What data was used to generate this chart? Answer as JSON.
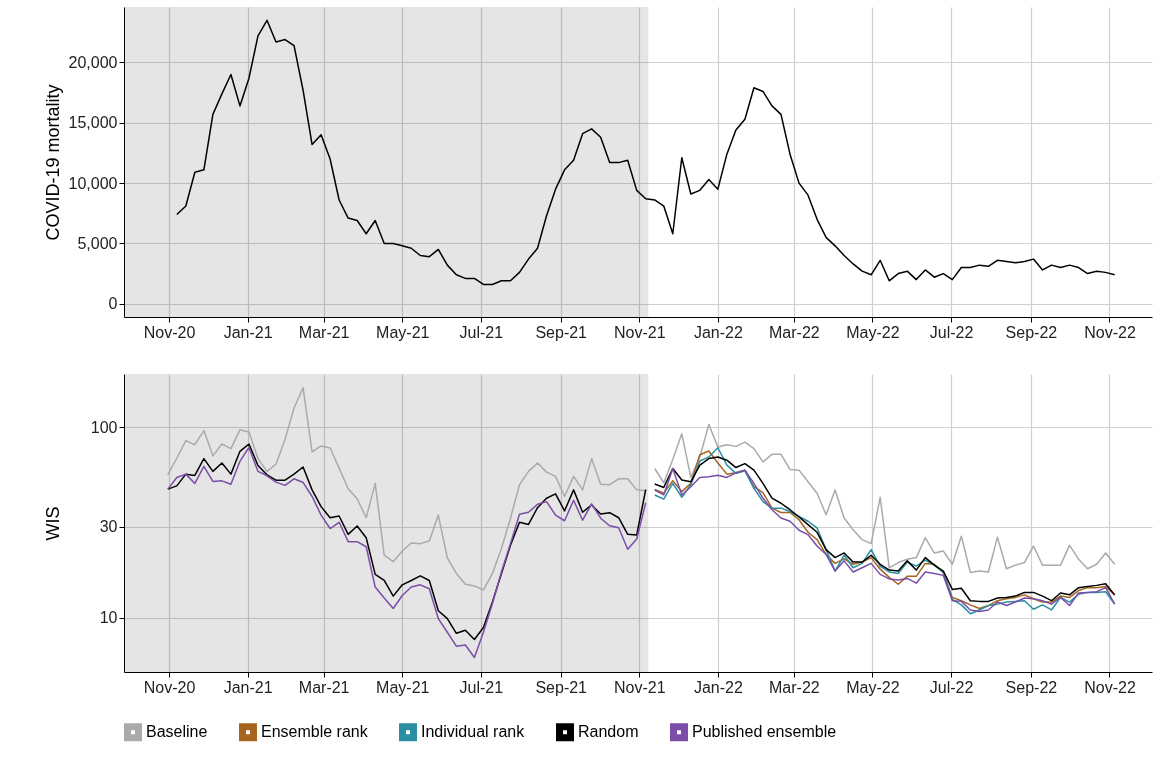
{
  "chart_data": [
    {
      "type": "line",
      "ylabel": "COVID-19 mortality",
      "color": "#000000",
      "x": [
        "2020-11-07",
        "2020-11-14",
        "2020-11-21",
        "2020-11-28",
        "2020-12-05",
        "2020-12-12",
        "2020-12-19",
        "2020-12-26",
        "2021-01-02",
        "2021-01-09",
        "2021-01-16",
        "2021-01-23",
        "2021-01-30",
        "2021-02-06",
        "2021-02-13",
        "2021-02-20",
        "2021-02-27",
        "2021-03-06",
        "2021-03-13",
        "2021-03-20",
        "2021-03-27",
        "2021-04-03",
        "2021-04-10",
        "2021-04-17",
        "2021-04-24",
        "2021-05-01",
        "2021-05-08",
        "2021-05-15",
        "2021-05-22",
        "2021-05-29",
        "2021-06-05",
        "2021-06-12",
        "2021-06-19",
        "2021-06-26",
        "2021-07-03",
        "2021-07-10",
        "2021-07-17",
        "2021-07-24",
        "2021-07-31",
        "2021-08-07",
        "2021-08-14",
        "2021-08-21",
        "2021-08-28",
        "2021-09-04",
        "2021-09-11",
        "2021-09-18",
        "2021-09-25",
        "2021-10-02",
        "2021-10-09",
        "2021-10-16",
        "2021-10-23",
        "2021-10-30",
        "2021-11-06",
        "2021-11-13",
        "2021-11-20",
        "2021-11-27",
        "2021-12-04",
        "2021-12-11",
        "2021-12-18",
        "2021-12-25",
        "2022-01-01",
        "2022-01-08",
        "2022-01-15",
        "2022-01-22",
        "2022-01-29",
        "2022-02-05",
        "2022-02-12",
        "2022-02-19",
        "2022-02-26",
        "2022-03-05",
        "2022-03-12",
        "2022-03-19",
        "2022-03-26",
        "2022-04-02",
        "2022-04-09",
        "2022-04-16",
        "2022-04-23",
        "2022-04-30",
        "2022-05-07",
        "2022-05-14",
        "2022-05-21",
        "2022-05-28",
        "2022-06-04",
        "2022-06-11",
        "2022-06-18",
        "2022-06-25",
        "2022-07-02",
        "2022-07-09",
        "2022-07-16",
        "2022-07-23",
        "2022-07-30",
        "2022-08-06",
        "2022-08-13",
        "2022-08-20",
        "2022-08-27",
        "2022-09-03",
        "2022-09-10",
        "2022-09-17",
        "2022-09-24",
        "2022-10-01",
        "2022-10-08",
        "2022-10-15",
        "2022-10-22",
        "2022-10-29",
        "2022-11-05"
      ],
      "values": [
        7400,
        8100,
        10900,
        11100,
        15700,
        17400,
        19000,
        16400,
        18700,
        22200,
        23500,
        21700,
        21900,
        21400,
        17700,
        13200,
        14000,
        12000,
        8600,
        7100,
        6900,
        5800,
        6900,
        5000,
        5000,
        4800,
        4600,
        4000,
        3900,
        4500,
        3200,
        2400,
        2100,
        2100,
        1600,
        1600,
        1900,
        1900,
        2600,
        3700,
        4600,
        7300,
        9500,
        11100,
        11900,
        14100,
        14500,
        13800,
        11700,
        11700,
        11900,
        9400,
        8700,
        8600,
        8100,
        5800,
        12100,
        9100,
        9400,
        10300,
        9500,
        12400,
        14400,
        15300,
        17900,
        17600,
        16400,
        15700,
        12400,
        10000,
        9000,
        7000,
        5500,
        4800,
        4000,
        3300,
        2700,
        2400,
        3600,
        1900,
        2500,
        2700,
        2000,
        2800,
        2200,
        2500,
        2000,
        3000,
        3000,
        3200,
        3100,
        3600,
        3500,
        3400,
        3500,
        3700,
        2800,
        3200,
        3000,
        3200,
        3000,
        2500,
        2700,
        2600,
        2400
      ],
      "xlim": [
        "2020-09-27",
        "2022-12-04"
      ],
      "ylim": [
        -1100,
        24600
      ],
      "xticks": [
        {
          "value": "2020-11-01",
          "label": "Nov-20"
        },
        {
          "value": "2021-01-01",
          "label": "Jan-21"
        },
        {
          "value": "2021-03-01",
          "label": "Mar-21"
        },
        {
          "value": "2021-05-01",
          "label": "May-21"
        },
        {
          "value": "2021-07-01",
          "label": "Jul-21"
        },
        {
          "value": "2021-09-01",
          "label": "Sep-21"
        },
        {
          "value": "2021-11-01",
          "label": "Nov-21"
        },
        {
          "value": "2022-01-01",
          "label": "Jan-22"
        },
        {
          "value": "2022-03-01",
          "label": "Mar-22"
        },
        {
          "value": "2022-05-01",
          "label": "May-22"
        },
        {
          "value": "2022-07-01",
          "label": "Jul-22"
        },
        {
          "value": "2022-09-01",
          "label": "Sep-22"
        },
        {
          "value": "2022-11-01",
          "label": "Nov-22"
        }
      ],
      "yticks": [
        0,
        {
          "value": 5000,
          "label": "5,000"
        },
        {
          "value": 10000,
          "label": "10,000"
        },
        {
          "value": 15000,
          "label": "15,000"
        },
        {
          "value": 20000,
          "label": "20,000"
        }
      ],
      "grid": true,
      "bands": [
        {
          "axis": "x",
          "from": "2020-09-27",
          "to": "2021-11-08",
          "color": "#e5e5e5"
        }
      ]
    },
    {
      "type": "line",
      "ylabel": "WIS",
      "log": true,
      "legend": "bottom",
      "x": [
        "2020-10-31",
        "2020-11-07",
        "2020-11-14",
        "2020-11-21",
        "2020-11-28",
        "2020-12-05",
        "2020-12-12",
        "2020-12-19",
        "2020-12-26",
        "2021-01-02",
        "2021-01-09",
        "2021-01-16",
        "2021-01-23",
        "2021-01-30",
        "2021-02-06",
        "2021-02-13",
        "2021-02-20",
        "2021-02-27",
        "2021-03-06",
        "2021-03-13",
        "2021-03-20",
        "2021-03-27",
        "2021-04-03",
        "2021-04-10",
        "2021-04-17",
        "2021-04-24",
        "2021-05-01",
        "2021-05-08",
        "2021-05-15",
        "2021-05-22",
        "2021-05-29",
        "2021-06-05",
        "2021-06-12",
        "2021-06-19",
        "2021-06-26",
        "2021-07-03",
        "2021-07-10",
        "2021-07-17",
        "2021-07-24",
        "2021-07-31",
        "2021-08-07",
        "2021-08-14",
        "2021-08-21",
        "2021-08-28",
        "2021-09-04",
        "2021-09-11",
        "2021-09-18",
        "2021-09-25",
        "2021-10-02",
        "2021-10-09",
        "2021-10-16",
        "2021-10-23",
        "2021-10-30",
        "2021-11-06",
        "2021-11-09",
        "2021-11-13",
        "2021-11-20",
        "2021-11-27",
        "2021-12-04",
        "2021-12-11",
        "2021-12-18",
        "2021-12-25",
        "2022-01-01",
        "2022-01-08",
        "2022-01-15",
        "2022-01-22",
        "2022-01-29",
        "2022-02-05",
        "2022-02-12",
        "2022-02-19",
        "2022-02-26",
        "2022-03-05",
        "2022-03-12",
        "2022-03-19",
        "2022-03-26",
        "2022-04-02",
        "2022-04-09",
        "2022-04-16",
        "2022-04-23",
        "2022-04-30",
        "2022-05-07",
        "2022-05-14",
        "2022-05-21",
        "2022-05-28",
        "2022-06-04",
        "2022-06-11",
        "2022-06-18",
        "2022-06-25",
        "2022-07-02",
        "2022-07-09",
        "2022-07-16",
        "2022-07-23",
        "2022-07-30",
        "2022-08-06",
        "2022-08-13",
        "2022-08-20",
        "2022-08-27",
        "2022-09-03",
        "2022-09-10",
        "2022-09-17",
        "2022-09-24",
        "2022-10-01",
        "2022-10-08",
        "2022-10-15",
        "2022-10-22",
        "2022-10-29",
        "2022-11-05"
      ],
      "series": [
        {
          "name": "Baseline",
          "color": "#aaaaaa",
          "values": [
            56.2,
            68.9,
            85,
            80.9,
            95.9,
            70.7,
            81.6,
            77.1,
            96.8,
            94.4,
            68.4,
            58.6,
            64.1,
            86.1,
            126,
            161,
            74.1,
            79.7,
            77.8,
            61,
            47.5,
            42.1,
            33.5,
            50.7,
            21.3,
            19.7,
            22.4,
            24.7,
            24.5,
            25.3,
            34.6,
            20.6,
            17.1,
            15,
            14.7,
            14,
            17.1,
            23.1,
            33.3,
            49.9,
            58.6,
            64.9,
            58.1,
            55.2,
            43.3,
            55.2,
            46.9,
            68.4,
            50.2,
            49.9,
            53.6,
            53.6,
            46.9,
            46.4,
            null,
            60.7,
            51.1,
            67.6,
            92.3,
            54.5,
            69.8,
            103.2,
            78.6,
            80.9,
            79.3,
            83.5,
            77.1,
            65.7,
            72,
            72,
            60,
            59.5,
            51.7,
            45,
            34.7,
            46.8,
            33.4,
            29,
            25.7,
            24.5,
            42.9,
            18.3,
            19.5,
            20.3,
            20.7,
            26.3,
            21.9,
            22.4,
            19.1,
            26.8,
            17.3,
            17.6,
            17.4,
            26.5,
            18.1,
            18.9,
            19.5,
            23.8,
            18.9,
            18.9,
            18.9,
            24,
            20.3,
            18.1,
            19.1,
            21.9,
            19.1
          ]
        },
        {
          "name": "Ensemble rank",
          "color": "#a6651f",
          "x": [
            "2021-11-13",
            "2021-11-20",
            "2021-11-27",
            "2021-12-04",
            "2021-12-11",
            "2021-12-18",
            "2021-12-25",
            "2022-01-01",
            "2022-01-08",
            "2022-01-15",
            "2022-01-22",
            "2022-01-29",
            "2022-02-05",
            "2022-02-12",
            "2022-02-19",
            "2022-02-26",
            "2022-03-05",
            "2022-03-12",
            "2022-03-19",
            "2022-03-26",
            "2022-04-02",
            "2022-04-09",
            "2022-04-16",
            "2022-04-23",
            "2022-04-30",
            "2022-05-07",
            "2022-05-14",
            "2022-05-21",
            "2022-05-28",
            "2022-06-04",
            "2022-06-11",
            "2022-06-18",
            "2022-06-25",
            "2022-07-02",
            "2022-07-09",
            "2022-07-16",
            "2022-07-23",
            "2022-07-30",
            "2022-08-06",
            "2022-08-13",
            "2022-08-20",
            "2022-08-27",
            "2022-09-03",
            "2022-09-10",
            "2022-09-17",
            "2022-09-24",
            "2022-10-01",
            "2022-10-08",
            "2022-10-15",
            "2022-10-22",
            "2022-10-29",
            "2022-11-05"
          ],
          "values": [
            47.2,
            45,
            52.4,
            45.9,
            50.7,
            71.7,
            75,
            64.9,
            56.7,
            57.6,
            59.5,
            48.7,
            45.4,
            37.6,
            35.7,
            35.7,
            32.7,
            28.1,
            25.7,
            21.5,
            19.3,
            20.4,
            19.1,
            19.6,
            20.7,
            18,
            16.3,
            15,
            16.5,
            16.5,
            19.3,
            19.1,
            17.3,
            12.8,
            12.3,
            11.7,
            11.2,
            11.6,
            12.3,
            12.6,
            12.8,
            13.2,
            12.6,
            12.1,
            12.1,
            13,
            12.8,
            13.9,
            14.4,
            14.4,
            14.6,
            13.2
          ]
        },
        {
          "name": "Individual rank",
          "color": "#2a8fa3",
          "x": [
            "2021-11-13",
            "2021-11-20",
            "2021-11-27",
            "2021-12-04",
            "2021-12-11",
            "2021-12-18",
            "2021-12-25",
            "2022-01-01",
            "2022-01-08",
            "2022-01-15",
            "2022-01-22",
            "2022-01-29",
            "2022-02-05",
            "2022-02-12",
            "2022-02-19",
            "2022-02-26",
            "2022-03-05",
            "2022-03-12",
            "2022-03-19",
            "2022-03-26",
            "2022-04-02",
            "2022-04-09",
            "2022-04-16",
            "2022-04-23",
            "2022-04-30",
            "2022-05-07",
            "2022-05-14",
            "2022-05-21",
            "2022-05-28",
            "2022-06-04",
            "2022-06-11",
            "2022-06-18",
            "2022-06-25",
            "2022-07-02",
            "2022-07-09",
            "2022-07-16",
            "2022-07-23",
            "2022-07-30",
            "2022-08-06",
            "2022-08-13",
            "2022-08-20",
            "2022-08-27",
            "2022-09-03",
            "2022-09-10",
            "2022-09-17",
            "2022-09-24",
            "2022-10-01",
            "2022-10-08",
            "2022-10-15",
            "2022-10-22",
            "2022-10-29",
            "2022-11-05"
          ],
          "values": [
            44.1,
            41.9,
            50.7,
            42.9,
            49.7,
            66.5,
            69.8,
            78,
            63.2,
            57.2,
            59,
            47.8,
            40.7,
            37.6,
            37.6,
            36.1,
            34,
            32.1,
            29.6,
            22.8,
            17.6,
            21.3,
            18.3,
            19.3,
            22.8,
            18.6,
            17.4,
            17.1,
            19.6,
            18.7,
            20.1,
            18.9,
            17.3,
            12.5,
            11.7,
            10.5,
            11,
            11.6,
            11.8,
            12.1,
            12.2,
            12.3,
            11.1,
            11.7,
            11,
            12.8,
            12.1,
            13.3,
            13.6,
            13.6,
            13.7,
            11.8
          ]
        },
        {
          "name": "Random",
          "color": "#000000",
          "values": [
            47.3,
            49.2,
            56.7,
            55.8,
            68.4,
            58.6,
            64.9,
            56.7,
            74.7,
            81.6,
            63,
            56.2,
            52.7,
            52.7,
            56.7,
            61.8,
            46.9,
            38.3,
            33.5,
            34.2,
            27.4,
            30.3,
            26.3,
            16.9,
            15.7,
            13,
            14.9,
            15.7,
            16.6,
            15.7,
            10.9,
            9.9,
            8.3,
            8.6,
            7.7,
            8.9,
            12.1,
            17.1,
            24,
            31.7,
            30.9,
            37.8,
            42.4,
            44.7,
            36.4,
            46.9,
            35.8,
            39.1,
            35,
            35.6,
            33.5,
            27.4,
            27.2,
            47.1,
            null,
            50.3,
            48.3,
            60.7,
            52.8,
            51.7,
            63.2,
            68.4,
            69.8,
            67.1,
            61.4,
            64.4,
            59.5,
            50.7,
            42.4,
            39.9,
            36.9,
            33.8,
            30.8,
            28.1,
            22.8,
            20.7,
            21.9,
            19.6,
            19.6,
            21.3,
            19.1,
            17.8,
            17.6,
            19.9,
            17.8,
            20.7,
            18.9,
            17.6,
            14.1,
            14.3,
            12.3,
            12.2,
            12.2,
            12.7,
            12.8,
            13,
            13.6,
            13.6,
            13,
            12.3,
            13.5,
            13.2,
            14.4,
            14.6,
            14.8,
            15.1,
            13.2
          ]
        },
        {
          "name": "Published ensemble",
          "color": "#7a4ea8",
          "values": [
            47.3,
            54.5,
            56.7,
            50.7,
            62.3,
            51.9,
            52.3,
            50.2,
            66.2,
            78.3,
            58.6,
            55.6,
            51.5,
            49.5,
            53.6,
            51.3,
            43.3,
            34.6,
            29.4,
            31.7,
            25.1,
            25.1,
            23.6,
            14.5,
            12.7,
            11.2,
            13.1,
            14.5,
            14.9,
            14.2,
            9.9,
            8.4,
            7.1,
            7.2,
            6.2,
            8.4,
            11.9,
            17.4,
            24.5,
            34.9,
            35.8,
            39.4,
            40.7,
            34.6,
            32.3,
            41.4,
            32.5,
            39.6,
            33.3,
            30.4,
            29.7,
            22.9,
            25.9,
            40.2,
            null,
            46.8,
            44.1,
            60.7,
            44.1,
            48.7,
            54.5,
            54.9,
            56,
            54.5,
            57.6,
            59.5,
            50.7,
            42.4,
            36.9,
            33.4,
            32.1,
            28.8,
            27.3,
            23.8,
            21.5,
            17.6,
            19.9,
            17.4,
            18.3,
            19.3,
            16.9,
            16,
            15.8,
            16.1,
            15.2,
            17.4,
            17.1,
            16.7,
            12.3,
            12.2,
            11,
            10.8,
            11,
            12.1,
            11.6,
            12.1,
            12.7,
            12.6,
            12.3,
            11.8,
            12.8,
            11.6,
            13.5,
            13.6,
            13.7,
            14.4,
            11.8
          ]
        }
      ],
      "xlim": [
        "2020-09-27",
        "2022-12-04"
      ],
      "ylim": [
        5.2,
        190
      ],
      "xticks": [
        {
          "value": "2020-11-01",
          "label": "Nov-20"
        },
        {
          "value": "2021-01-01",
          "label": "Jan-21"
        },
        {
          "value": "2021-03-01",
          "label": "Mar-21"
        },
        {
          "value": "2021-05-01",
          "label": "May-21"
        },
        {
          "value": "2021-07-01",
          "label": "Jul-21"
        },
        {
          "value": "2021-09-01",
          "label": "Sep-21"
        },
        {
          "value": "2021-11-01",
          "label": "Nov-21"
        },
        {
          "value": "2022-01-01",
          "label": "Jan-22"
        },
        {
          "value": "2022-03-01",
          "label": "Mar-22"
        },
        {
          "value": "2022-05-01",
          "label": "May-22"
        },
        {
          "value": "2022-07-01",
          "label": "Jul-22"
        },
        {
          "value": "2022-09-01",
          "label": "Sep-22"
        },
        {
          "value": "2022-11-01",
          "label": "Nov-22"
        }
      ],
      "yticks": [
        10,
        30,
        100
      ],
      "grid": true,
      "bands": [
        {
          "axis": "x",
          "from": "2020-09-27",
          "to": "2021-11-08",
          "color": "#e5e5e5"
        }
      ]
    }
  ]
}
